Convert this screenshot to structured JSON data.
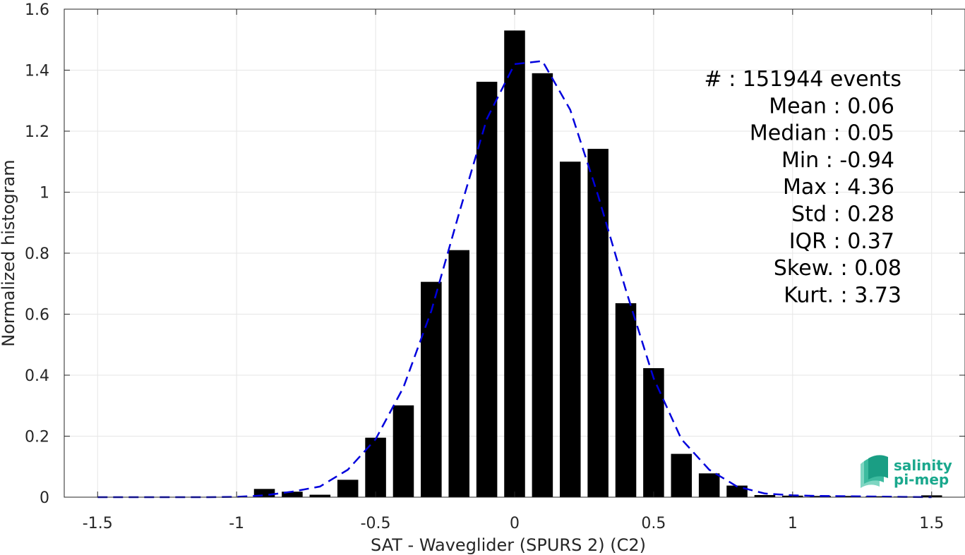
{
  "chart_data": {
    "type": "bar",
    "title": "",
    "xlabel": "SAT - Waveglider (SPURS 2) (C2)",
    "ylabel": "Normalized histogram",
    "xlim": [
      -1.62,
      1.62
    ],
    "ylim": [
      0,
      1.6
    ],
    "x_ticks": [
      -1.5,
      -1,
      -0.5,
      0,
      0.5,
      1,
      1.5
    ],
    "x_tick_labels": [
      "-1.5",
      "-1",
      "-0.5",
      "0",
      "0.5",
      "1",
      "1.5"
    ],
    "y_ticks": [
      0,
      0.2,
      0.4,
      0.6,
      0.8,
      1,
      1.2,
      1.4,
      1.6
    ],
    "y_tick_labels": [
      "0",
      "0.2",
      "0.4",
      "0.6",
      "0.8",
      "1",
      "1.2",
      "1.4",
      "1.6"
    ],
    "grid": true,
    "bar_width": 0.075,
    "bars": {
      "x": [
        -1.5,
        -1.4,
        -1.3,
        -1.2,
        -1.1,
        -1.0,
        -0.9,
        -0.8,
        -0.7,
        -0.6,
        -0.5,
        -0.4,
        -0.3,
        -0.2,
        -0.1,
        0.0,
        0.1,
        0.2,
        0.3,
        0.4,
        0.5,
        0.6,
        0.7,
        0.8,
        0.9,
        1.0,
        1.1,
        1.2,
        1.3,
        1.4,
        1.5
      ],
      "values": [
        0,
        0,
        0,
        0,
        0,
        0,
        0.027,
        0.018,
        0.008,
        0.057,
        0.195,
        0.301,
        0.706,
        0.81,
        1.362,
        1.53,
        1.39,
        1.1,
        1.142,
        0.636,
        0.423,
        0.142,
        0.078,
        0.038,
        0.007,
        0.005,
        0.004,
        0.004,
        0.003,
        0.002,
        0.006
      ],
      "color": "#000000"
    },
    "fit_curve": {
      "style": "dashed",
      "color": "#0000dd",
      "x": [
        -1.5,
        -1.4,
        -1.3,
        -1.2,
        -1.1,
        -1.0,
        -0.9,
        -0.8,
        -0.7,
        -0.6,
        -0.5,
        -0.4,
        -0.3,
        -0.2,
        -0.1,
        0.0,
        0.1,
        0.2,
        0.3,
        0.4,
        0.5,
        0.6,
        0.7,
        0.8,
        0.9,
        1.0,
        1.1,
        1.2,
        1.3,
        1.4,
        1.5
      ],
      "values": [
        0,
        0,
        0,
        0,
        0,
        0.001,
        0.006,
        0.018,
        0.035,
        0.09,
        0.19,
        0.36,
        0.61,
        0.93,
        1.24,
        1.42,
        1.43,
        1.27,
        0.99,
        0.68,
        0.39,
        0.19,
        0.09,
        0.035,
        0.012,
        0.006,
        0.004,
        0.003,
        0.002,
        0.001,
        0
      ]
    },
    "annotation": {
      "placement": "top-right",
      "lines": [
        "#   : 151944 events",
        "Mean : 0.06",
        "Median : 0.05",
        "Min : -0.94",
        "Max : 4.36",
        "Std : 0.28",
        "IQR : 0.37",
        "Skew. : 0.08",
        "Kurt. : 3.73"
      ]
    }
  },
  "logo": {
    "line1": "salinity",
    "line2": "pi-mep",
    "color": "#1aa88d"
  }
}
